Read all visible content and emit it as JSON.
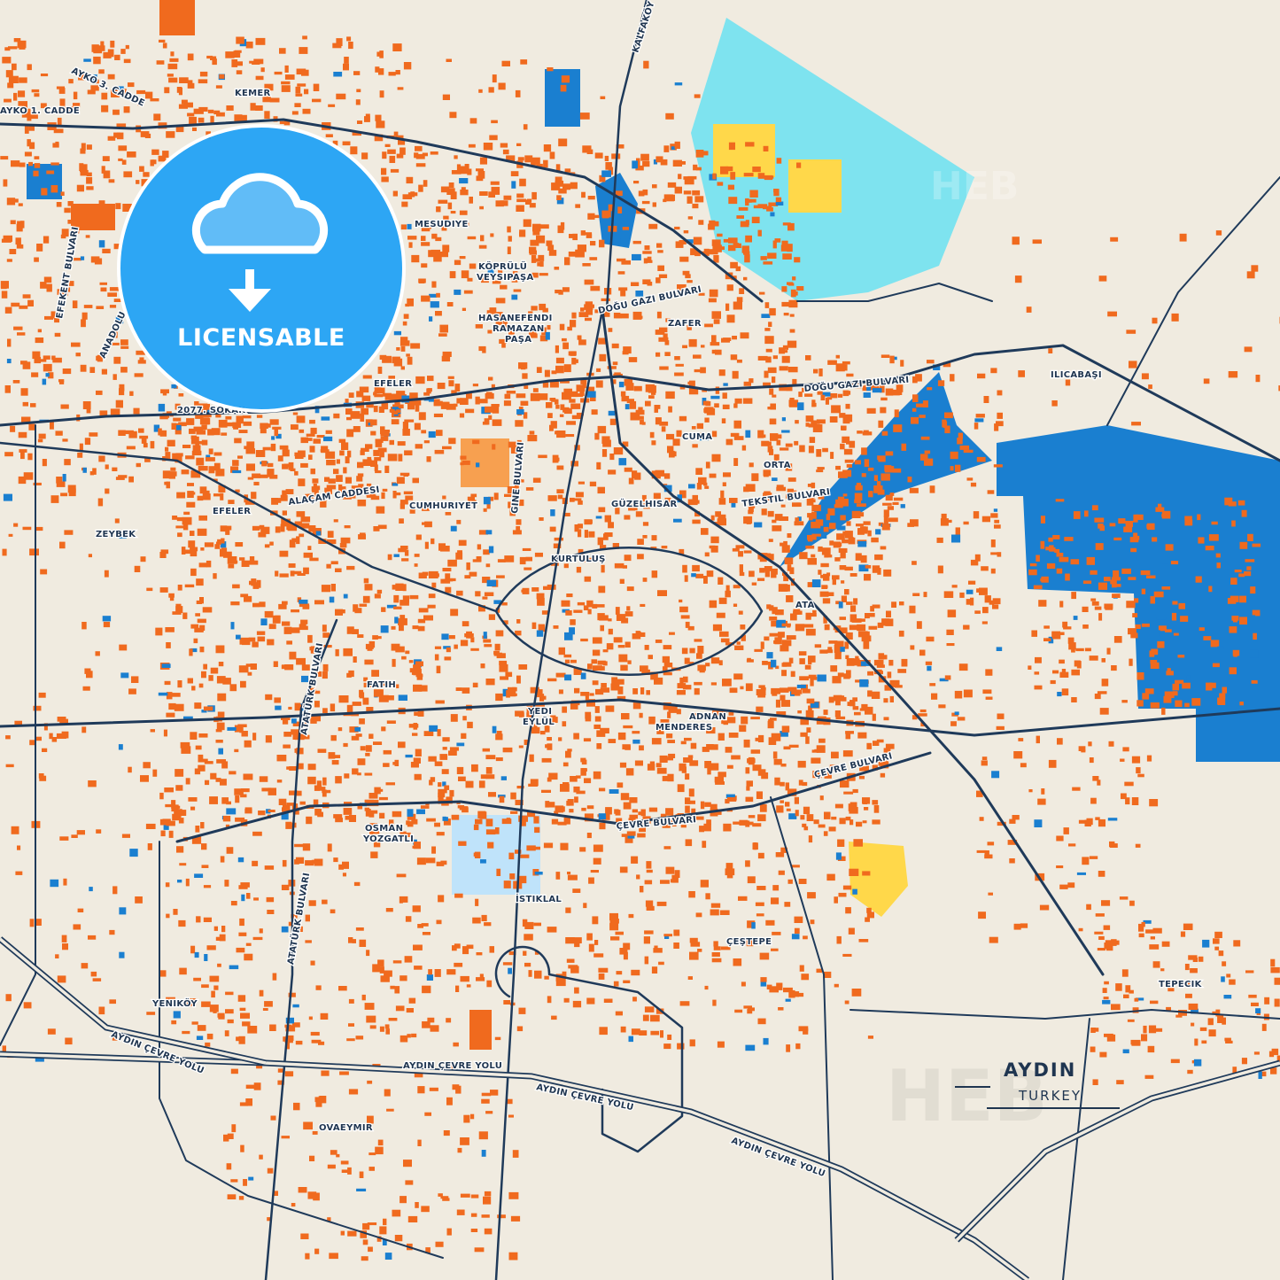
{
  "map": {
    "city": "AYDIN",
    "country": "TURKEY",
    "colors": {
      "background": "#f0ebe0",
      "roads": "#1f3a5a",
      "buildings": "#f06a1e",
      "industrial": "#1a7fd0",
      "campus": "#7ee3ef",
      "water_parks": "#bfe3fa",
      "yellow_areas": "#ffd84a"
    },
    "badge": {
      "label": "LICENSABLE",
      "icon": "cloud-download-icon"
    },
    "watermark": "HEBSTREIT",
    "labels": {
      "ayko3": "AYKO 3. CADDE",
      "ayko1": "AYKO 1. CADDE",
      "kemer": "KEMER",
      "kalfakoy": "KALFAKÖY YOLU",
      "mesudiye": "MESUDIYE",
      "koprulu1": "KÖPRÜLÜ",
      "koprulu2": "VEYSIPAŞA",
      "hasan1": "HASANEFENDI",
      "hasan2": "RAMAZAN",
      "hasan3": "PAŞA",
      "zafer": "ZAFER",
      "dogu1": "DOĞU GAZI BULVARI",
      "dogu2": "DOĞU GAZI BULVARI",
      "efeler1": "EFELER",
      "efeler2": "EFELER",
      "sokak": "2077. SOKAK",
      "alacam": "ALAÇAM CADDESI",
      "cumhuriyet": "CUMHURIYET",
      "guzelhisar": "GÜZELHISAR",
      "cuma": "CUMA",
      "orta": "ORTA",
      "tekstil": "TEKSTIL BULVARI",
      "kurtulus": "KURTULUŞ",
      "ata": "ATA",
      "zeybek": "ZEYBEK",
      "fatih": "FATIH",
      "yedi1": "YEDI",
      "yedi2": "EYLÜL",
      "adnan1": "ADNAN",
      "adnan2": "MENDERES",
      "cevre1": "ÇEVRE BULVARI",
      "cevre2": "ÇEVRE BULVARI",
      "osman1": "OSMAN",
      "osman2": "YOZGATLI",
      "ataturk1": "ATATÜRK BULVARI",
      "ataturk2": "ATATÜRK BULVARI",
      "istiklal": "İSTIKLAL",
      "cestepe": "ÇEŞTEPE",
      "yenikoy": "YENIKÖY",
      "cevreyolu1": "AYDIN ÇEVRE YOLU",
      "cevreyolu2": "AYDIN ÇEVRE YOLU",
      "cevreyolu3": "AYDIN ÇEVRE YOLU",
      "cevreyolu4": "AYDIN ÇEVRE YOLU",
      "ovaeymir": "OVAEYMIR",
      "tepecik": "TEPECIK",
      "ilicabasi": "ILICABAŞI",
      "efekent": "EFEKENT BULVARI",
      "anadolu": "ANADOLU",
      "gine": "GINE BULVARI"
    }
  }
}
